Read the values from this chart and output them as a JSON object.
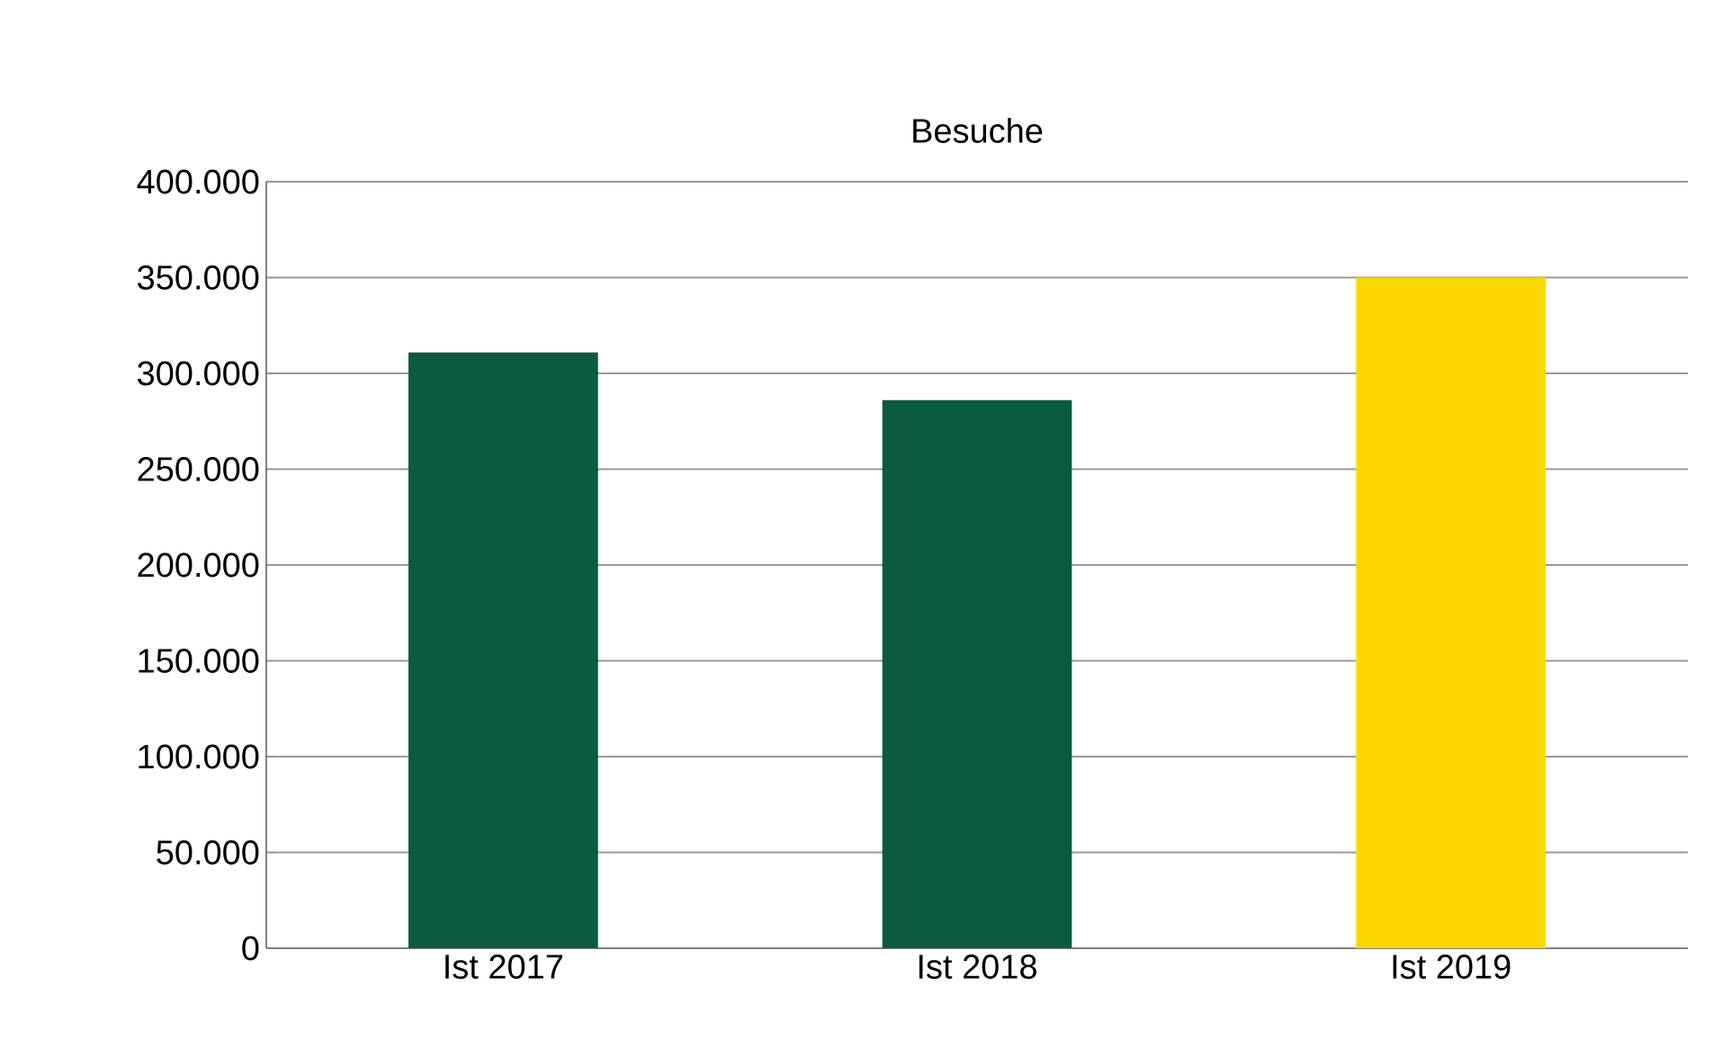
{
  "chart_data": {
    "type": "bar",
    "title": "Besuche",
    "categories": [
      "Ist 2017",
      "Ist 2018",
      "Ist 2019"
    ],
    "values": [
      311000,
      286000,
      350000
    ],
    "colors": [
      "#0b5b3f",
      "#0b5b3f",
      "#fcd800"
    ],
    "ylim": [
      0,
      400000
    ],
    "yticks": [
      {
        "value": 0,
        "label": "0"
      },
      {
        "value": 50000,
        "label": "50.000"
      },
      {
        "value": 100000,
        "label": "100.000"
      },
      {
        "value": 150000,
        "label": "150.000"
      },
      {
        "value": 200000,
        "label": "200.000"
      },
      {
        "value": 250000,
        "label": "250.000"
      },
      {
        "value": 300000,
        "label": "300.000"
      },
      {
        "value": 350000,
        "label": "350.000"
      },
      {
        "value": 400000,
        "label": "400.000"
      }
    ],
    "grid": "y"
  }
}
